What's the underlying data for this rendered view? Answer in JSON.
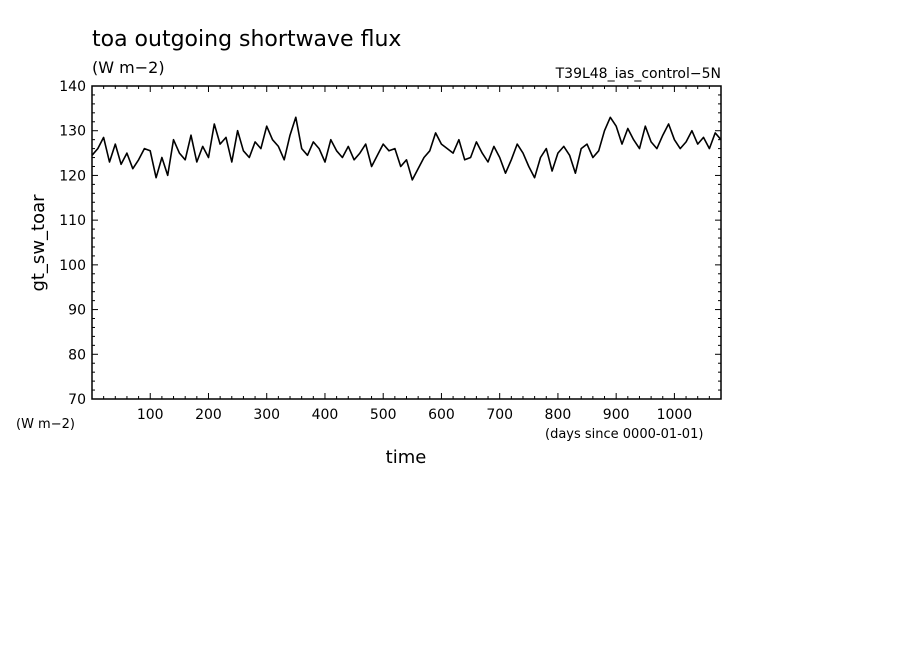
{
  "chart_data": {
    "type": "line",
    "title": "toa outgoing shortwave flux",
    "units": "(W m−2)",
    "run_label": "T39L48_ias_control−5N",
    "ylabel": "gt_sw_toar",
    "y_units_label": "(W m−2)",
    "xlabel": "time",
    "x_units_label": "(days since 0000-01-01)",
    "xlim": [
      0,
      1080
    ],
    "ylim": [
      70,
      140
    ],
    "x_ticks": [
      100,
      200,
      300,
      400,
      500,
      600,
      700,
      800,
      900,
      1000
    ],
    "y_ticks": [
      70,
      80,
      90,
      100,
      110,
      120,
      130,
      140
    ],
    "grid": false,
    "series": [
      {
        "color": "#000000",
        "x": [
          0,
          10,
          20,
          30,
          40,
          50,
          60,
          70,
          80,
          90,
          100,
          110,
          120,
          130,
          140,
          150,
          160,
          170,
          180,
          190,
          200,
          210,
          220,
          230,
          240,
          250,
          260,
          270,
          280,
          290,
          300,
          310,
          320,
          330,
          340,
          350,
          360,
          370,
          380,
          390,
          400,
          410,
          420,
          430,
          440,
          450,
          460,
          470,
          480,
          490,
          500,
          510,
          520,
          530,
          540,
          550,
          560,
          570,
          580,
          590,
          600,
          610,
          620,
          630,
          640,
          650,
          660,
          670,
          680,
          690,
          700,
          710,
          720,
          730,
          740,
          750,
          760,
          770,
          780,
          790,
          800,
          810,
          820,
          830,
          840,
          850,
          860,
          870,
          880,
          890,
          900,
          910,
          920,
          930,
          940,
          950,
          960,
          970,
          980,
          990,
          1000,
          1010,
          1020,
          1030,
          1040,
          1050,
          1060,
          1070,
          1080
        ],
        "y": [
          124.5,
          126.0,
          128.5,
          123.0,
          127.0,
          122.5,
          125.0,
          121.5,
          123.5,
          126.0,
          125.5,
          119.5,
          124.0,
          120.0,
          128.0,
          125.0,
          123.5,
          129.0,
          123.0,
          126.5,
          124.0,
          131.5,
          127.0,
          128.5,
          123.0,
          130.0,
          125.5,
          124.0,
          127.5,
          126.0,
          131.0,
          128.0,
          126.5,
          123.5,
          129.0,
          133.0,
          126.0,
          124.5,
          127.5,
          126.0,
          123.0,
          128.0,
          125.5,
          124.0,
          126.5,
          123.5,
          125.0,
          127.0,
          122.0,
          124.5,
          127.0,
          125.5,
          126.0,
          122.0,
          123.5,
          119.0,
          121.5,
          124.0,
          125.5,
          129.5,
          127.0,
          126.0,
          125.0,
          128.0,
          123.5,
          124.0,
          127.5,
          125.0,
          123.0,
          126.5,
          124.0,
          120.5,
          123.5,
          127.0,
          125.0,
          122.0,
          119.5,
          124.0,
          126.0,
          121.0,
          125.0,
          126.5,
          124.5,
          120.5,
          126.0,
          127.0,
          124.0,
          125.5,
          130.0,
          133.0,
          131.0,
          127.0,
          130.5,
          128.0,
          126.0,
          131.0,
          127.5,
          126.0,
          129.0,
          131.5,
          128.0,
          126.0,
          127.5,
          130.0,
          127.0,
          128.5,
          126.0,
          129.5,
          128.0
        ]
      }
    ]
  }
}
